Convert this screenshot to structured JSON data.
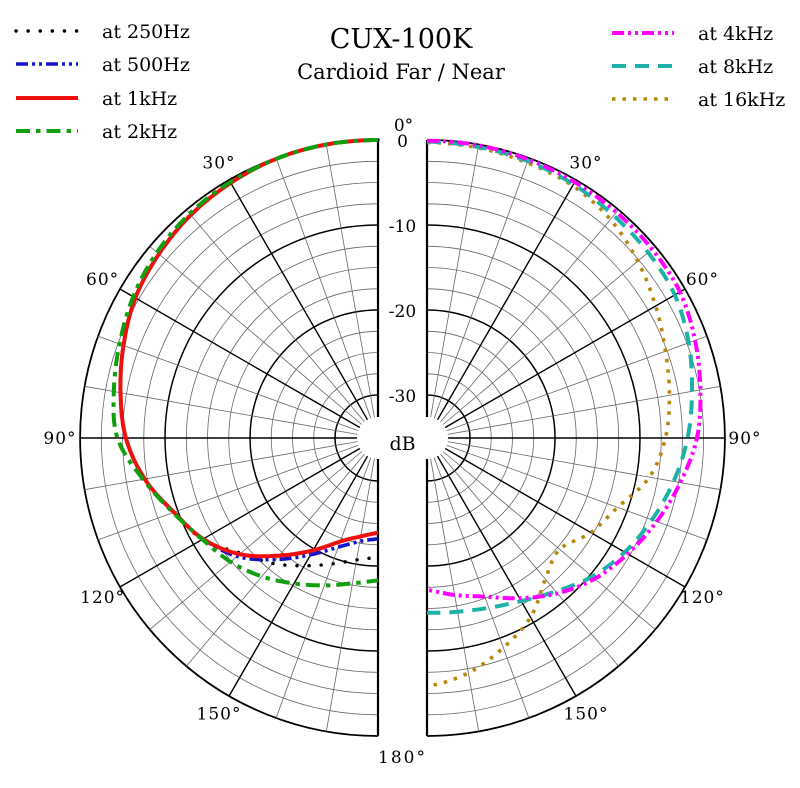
{
  "header": {
    "title": "CUX-100K",
    "subtitle": "Cardioid Far / Near"
  },
  "chart_data": {
    "type": "polar",
    "layout": "two half-circle polar plots (left = low frequencies, right = high frequencies) sharing a central dB column, grid on, legends top-left and top-right",
    "radial_axis": {
      "unit_label": "dB",
      "tick_labels": [
        "0",
        "-10",
        "-20",
        "-30"
      ],
      "tick_values_db": [
        0,
        -10,
        -20,
        -30
      ],
      "minor_step_db": 2.5,
      "outer_db": 0
    },
    "angular_axis": {
      "top_label": "0°",
      "bottom_label": "180°",
      "side_tick_labels": [
        "30°",
        "60°",
        "90°",
        "120°",
        "150°"
      ],
      "side_tick_values_deg": [
        30,
        60,
        90,
        120,
        150
      ],
      "minor_step_deg": 10,
      "major_step_deg": 30
    },
    "angles_deg": [
      0,
      10,
      20,
      30,
      40,
      50,
      60,
      70,
      80,
      90,
      100,
      110,
      120,
      130,
      140,
      150,
      160,
      170,
      180
    ],
    "left_half": {
      "series": [
        {
          "id": "250hz",
          "label": "at 250Hz",
          "color": "#000000",
          "dash": "dotted",
          "width": 3.4,
          "values_db": [
            0,
            0,
            -0.1,
            -0.4,
            -0.8,
            -1.4,
            -2.1,
            -3.2,
            -4.3,
            -5.4,
            -7.2,
            -9.5,
            -11.2,
            -14.0,
            -15.8,
            -17.7,
            -19.3,
            -20.5,
            -21.0
          ]
        },
        {
          "id": "500hz",
          "label": "at 500Hz",
          "color": "#1414cc",
          "dash": "dashdotdot",
          "width": 3.6,
          "values_db": [
            0,
            0,
            -0.1,
            -0.4,
            -0.8,
            -1.4,
            -2.1,
            -3.2,
            -4.3,
            -5.4,
            -7.2,
            -9.5,
            -11.3,
            -13.4,
            -16.4,
            -19.2,
            -21.4,
            -22.7,
            -23.2
          ]
        },
        {
          "id": "1khz",
          "label": "at 1kHz",
          "color": "#ee0f0f",
          "dash": "solid",
          "width": 4,
          "values_db": [
            0,
            0,
            -0.1,
            -0.4,
            -0.8,
            -1.4,
            -2.1,
            -3.2,
            -4.3,
            -5.4,
            -7.2,
            -9.5,
            -11.3,
            -13.8,
            -17.0,
            -19.8,
            -22.1,
            -23.3,
            -23.9
          ]
        },
        {
          "id": "2khz",
          "label": "at 2kHz",
          "color": "#0f9f0f",
          "dash": "dashdot",
          "width": 4,
          "values_db": [
            0,
            0,
            -0.1,
            -0.3,
            -0.6,
            -1.1,
            -1.8,
            -2.7,
            -3.5,
            -4.4,
            -7.0,
            -9.4,
            -11.2,
            -12.4,
            -13.8,
            -15.3,
            -16.6,
            -17.7,
            -18.3
          ]
        }
      ]
    },
    "right_half": {
      "series": [
        {
          "id": "16khz",
          "label": "at 16kHz",
          "color": "#b8860b",
          "dash": "sqdot",
          "width": 3.6,
          "values_db": [
            -0.3,
            -0.4,
            -0.6,
            -0.8,
            -1.5,
            -2.7,
            -4.0,
            -5.2,
            -6.1,
            -7.0,
            -8.5,
            -11.2,
            -12.8,
            -14.7,
            -13.4,
            -10.7,
            -8.8,
            -7.0,
            -5.9
          ]
        },
        {
          "id": "8khz",
          "label": "at 8kHz",
          "color": "#1cb2a8",
          "dash": "dashed",
          "width": 4,
          "values_db": [
            -0.2,
            -0.3,
            -0.4,
            -0.6,
            -0.9,
            -1.1,
            -1.4,
            -2.3,
            -3.4,
            -4.4,
            -5.6,
            -6.9,
            -8.2,
            -9.7,
            -11.5,
            -12.9,
            -13.8,
            -14.3,
            -14.5
          ]
        },
        {
          "id": "4khz",
          "label": "at 4kHz",
          "color": "#ff00ff",
          "dash": "dashdotdot",
          "width": 4,
          "values_db": [
            -0.1,
            -0.1,
            -0.2,
            -0.3,
            -0.4,
            -0.5,
            -0.7,
            -1.5,
            -2.4,
            -3.3,
            -4.8,
            -6.3,
            -7.8,
            -9.3,
            -11.2,
            -13.3,
            -15.2,
            -16.3,
            -17.2
          ]
        }
      ]
    },
    "legend_left_order": [
      "250hz",
      "500hz",
      "1khz",
      "2khz"
    ],
    "legend_right_order": [
      "4khz",
      "8khz",
      "16khz"
    ]
  }
}
